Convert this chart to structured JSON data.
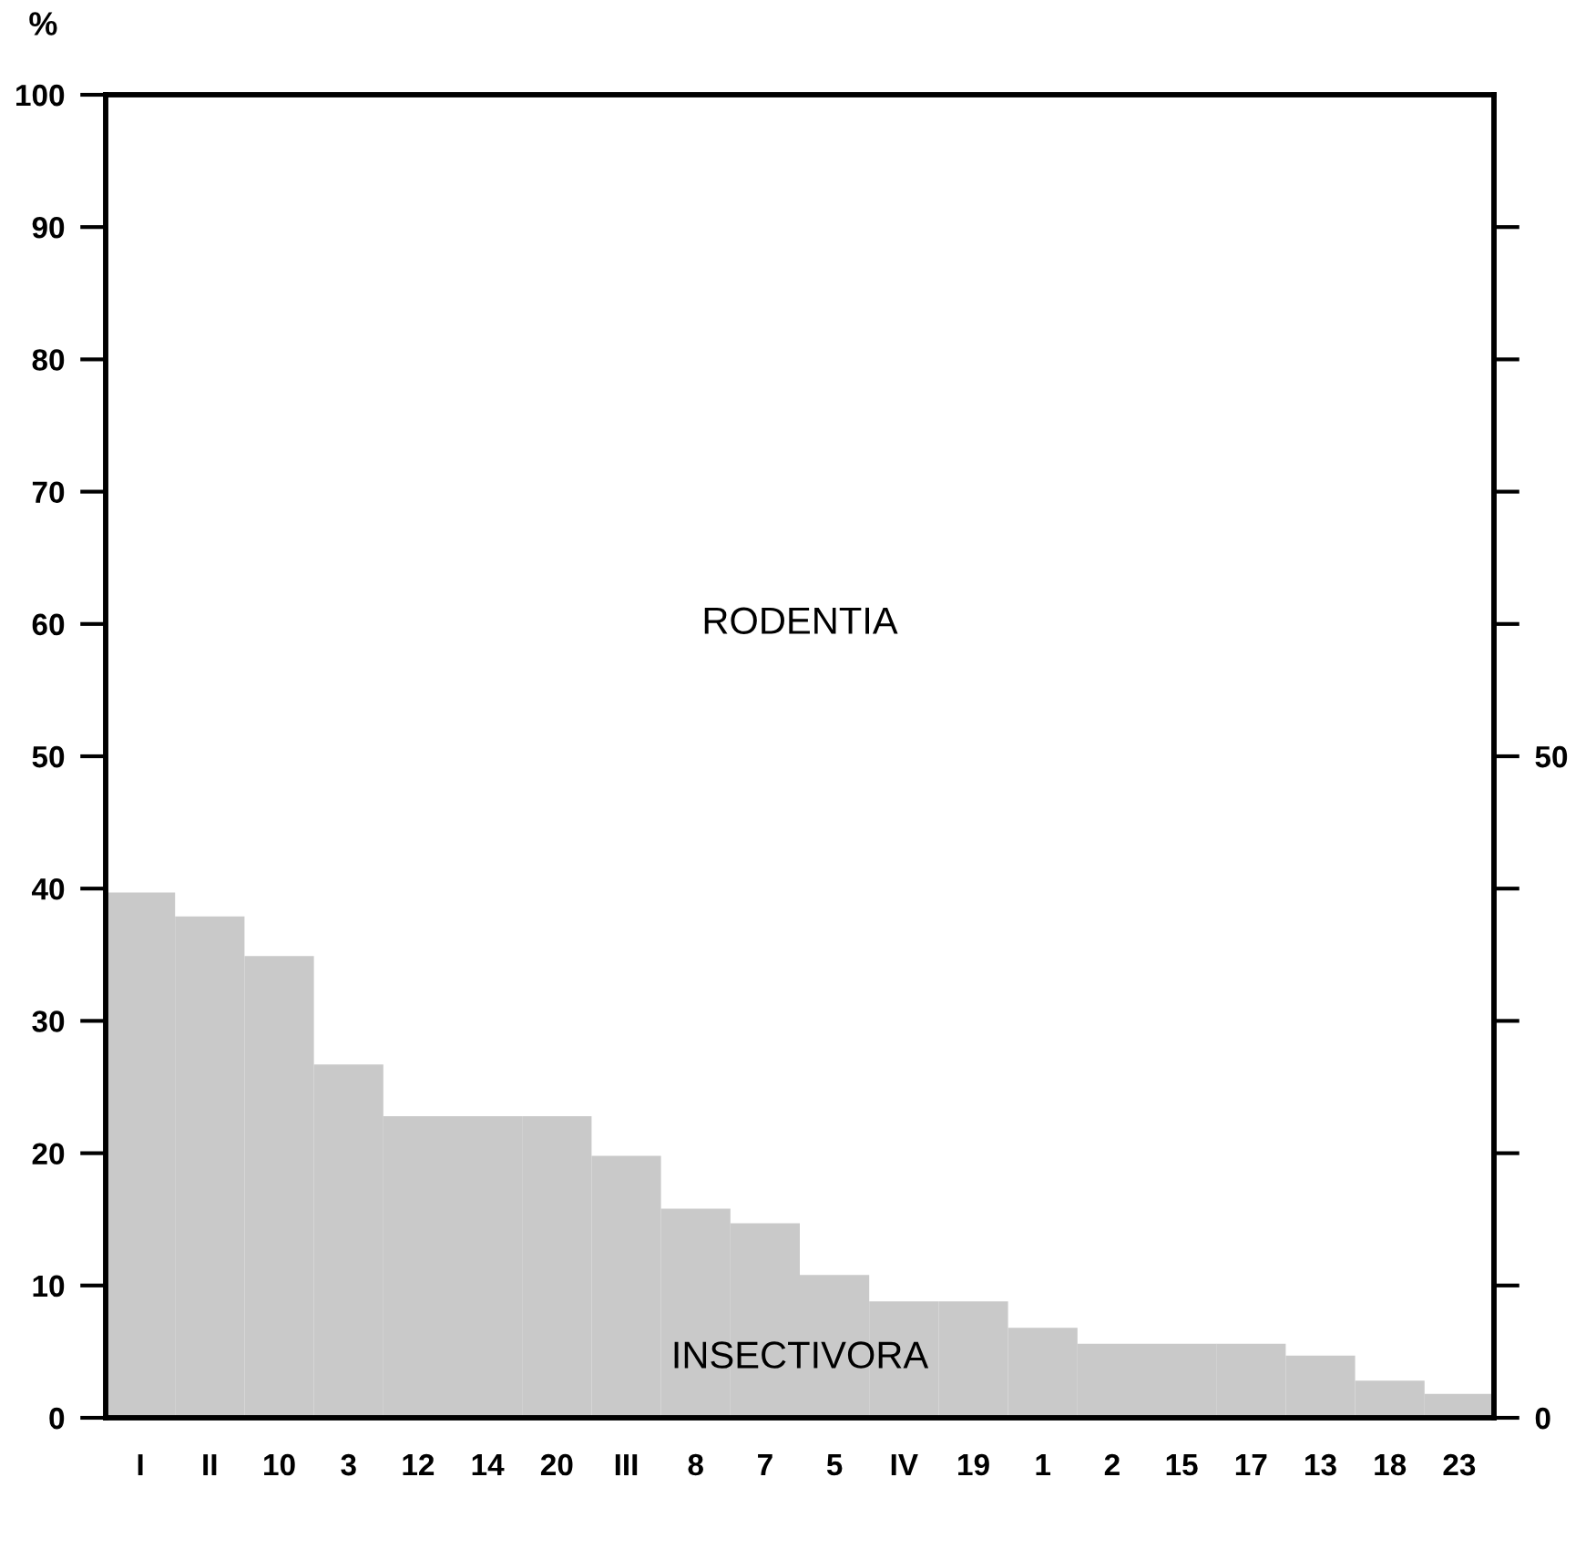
{
  "chart_data": {
    "type": "bar",
    "ylabel": "%",
    "categories": [
      "I",
      "II",
      "10",
      "3",
      "12",
      "14",
      "20",
      "III",
      "8",
      "7",
      "5",
      "IV",
      "19",
      "1",
      "2",
      "15",
      "17",
      "13",
      "18",
      "23"
    ],
    "values": [
      39.7,
      37.9,
      34.9,
      26.7,
      22.8,
      22.8,
      22.8,
      19.8,
      15.8,
      14.7,
      10.8,
      8.8,
      8.8,
      6.8,
      5.6,
      5.6,
      5.6,
      4.7,
      2.8,
      1.8
    ],
    "color": "#c9c9c9",
    "ylim": [
      0,
      100
    ],
    "yticks": [
      0,
      10,
      20,
      30,
      40,
      50,
      60,
      70,
      80,
      90,
      100
    ],
    "y2lim": [
      0,
      100
    ],
    "y2ticks": [
      0,
      {
        "value": 10,
        "label": null
      },
      {
        "value": 20,
        "label": null
      },
      {
        "value": 30,
        "label": null
      },
      {
        "value": 40,
        "label": null
      },
      50,
      {
        "value": 60,
        "label": null
      },
      {
        "value": 70,
        "label": null
      },
      {
        "value": 80,
        "label": null
      },
      {
        "value": 90,
        "label": null
      }
    ],
    "annotations": [
      "RODENTIA",
      "INSECTIVORA"
    ],
    "grid": false,
    "legend": false
  }
}
